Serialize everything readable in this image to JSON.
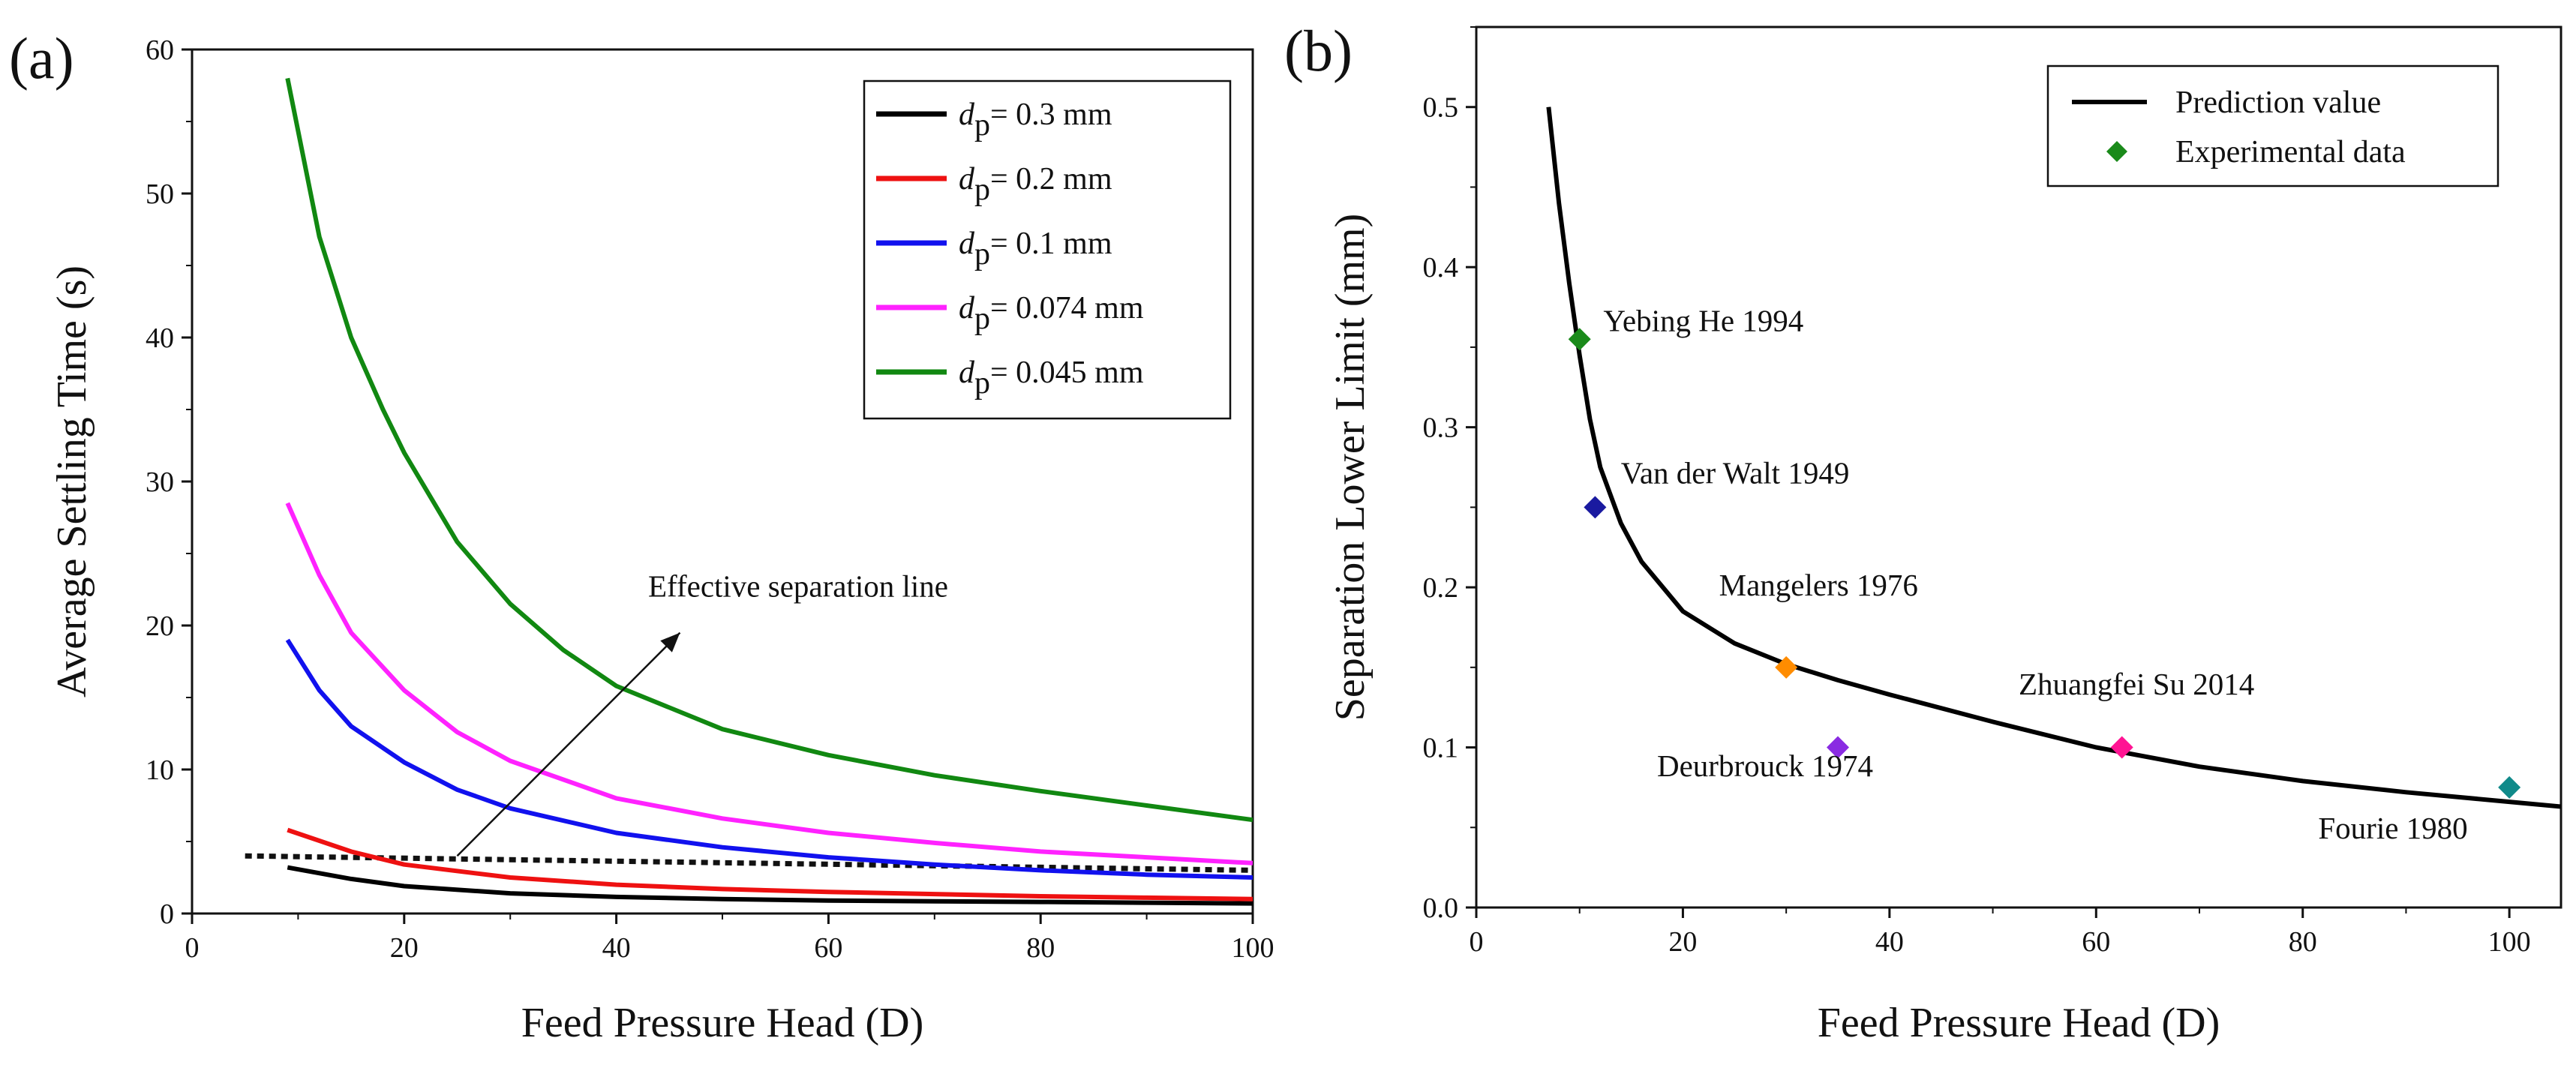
{
  "chart_data": [
    {
      "panel": "(a)",
      "type": "line",
      "xlabel": "Feed Pressure Head (D)",
      "ylabel": "Average Settling Time (s)",
      "xlim": [
        0,
        100
      ],
      "ylim": [
        0,
        60
      ],
      "xticks": [
        "0",
        "20",
        "40",
        "60",
        "80",
        "100"
      ],
      "yticks": [
        "0",
        "10",
        "20",
        "30",
        "40",
        "50",
        "60"
      ],
      "legend_position": "top-right",
      "grid": false,
      "series": [
        {
          "name": "d_p = 0.3 mm",
          "var": "d",
          "sub": "p",
          "rest": "= 0.3 mm",
          "color": "#000000",
          "x": [
            9,
            15,
            20,
            30,
            40,
            50,
            60,
            70,
            80,
            90,
            100
          ],
          "y": [
            3.2,
            2.4,
            1.9,
            1.4,
            1.15,
            1.0,
            0.9,
            0.85,
            0.8,
            0.75,
            0.7
          ]
        },
        {
          "name": "d_p = 0.2 mm",
          "var": "d",
          "sub": "p",
          "rest": "= 0.2 mm",
          "color": "#ee1111",
          "x": [
            9,
            15,
            20,
            30,
            40,
            50,
            60,
            70,
            80,
            90,
            100
          ],
          "y": [
            5.8,
            4.3,
            3.4,
            2.5,
            2.0,
            1.7,
            1.5,
            1.35,
            1.2,
            1.1,
            1.0
          ]
        },
        {
          "name": "d_p = 0.1 mm",
          "var": "d",
          "sub": "p",
          "rest": "= 0.1 mm",
          "color": "#1111ee",
          "x": [
            9,
            12,
            15,
            20,
            25,
            30,
            40,
            50,
            60,
            70,
            80,
            90,
            100
          ],
          "y": [
            19.0,
            15.5,
            13.0,
            10.5,
            8.6,
            7.3,
            5.6,
            4.6,
            3.9,
            3.4,
            3.0,
            2.7,
            2.5
          ]
        },
        {
          "name": "d_p = 0.074 mm",
          "var": "d",
          "sub": "p",
          "rest": "= 0.074 mm",
          "color": "#ff22ff",
          "x": [
            9,
            12,
            15,
            20,
            25,
            30,
            40,
            50,
            60,
            70,
            80,
            90,
            100
          ],
          "y": [
            28.5,
            23.5,
            19.5,
            15.5,
            12.6,
            10.6,
            8.0,
            6.6,
            5.6,
            4.9,
            4.3,
            3.9,
            3.5
          ]
        },
        {
          "name": "d_p = 0.045 mm",
          "var": "d",
          "sub": "p",
          "rest": "= 0.045 mm",
          "color": "#118811",
          "x": [
            9,
            12,
            15,
            18,
            20,
            25,
            30,
            35,
            40,
            50,
            60,
            70,
            80,
            90,
            100
          ],
          "y": [
            58.0,
            47.0,
            40.0,
            35.0,
            32.0,
            25.8,
            21.5,
            18.3,
            15.8,
            12.8,
            11.0,
            9.6,
            8.5,
            7.5,
            6.5
          ]
        }
      ],
      "reference_line": {
        "label": "Effective separation line",
        "x": [
          5,
          100
        ],
        "y": [
          4.0,
          3.0
        ]
      },
      "arrow": {
        "from": [
          25,
          4.0
        ],
        "to": [
          46,
          19.5
        ]
      },
      "arrow_label_anchor": [
        43,
        22
      ]
    },
    {
      "panel": "(b)",
      "type": "line+scatter",
      "xlabel": "Feed Pressure Head (D)",
      "ylabel": "Separation Lower Limit (mm)",
      "xlim": [
        0,
        105
      ],
      "ylim": [
        0,
        0.55
      ],
      "xticks": [
        "0",
        "20",
        "40",
        "60",
        "80",
        "100"
      ],
      "yticks": [
        "0.0",
        "0.1",
        "0.2",
        "0.3",
        "0.4",
        "0.5"
      ],
      "legend_position": "top-right",
      "grid": false,
      "legend": {
        "line": "Prediction value",
        "points": "Experimental data"
      },
      "prediction": {
        "color": "#000000",
        "x": [
          7,
          8,
          9,
          10,
          11,
          12,
          14,
          16,
          20,
          25,
          30,
          35,
          40,
          50,
          60,
          70,
          80,
          90,
          100,
          105
        ],
        "y": [
          0.5,
          0.44,
          0.39,
          0.345,
          0.305,
          0.275,
          0.24,
          0.216,
          0.185,
          0.165,
          0.152,
          0.142,
          0.133,
          0.116,
          0.1,
          0.088,
          0.079,
          0.072,
          0.066,
          0.063
        ]
      },
      "points": [
        {
          "label": "Yebing He 1994",
          "x": 10,
          "y": 0.355,
          "color": "#1a8a1a",
          "label_anchor": [
            12.3,
            0.36
          ],
          "align": "start"
        },
        {
          "label": "Van der Walt 1949",
          "x": 11.5,
          "y": 0.25,
          "color": "#1a1aa0",
          "label_anchor": [
            14,
            0.265
          ],
          "align": "start"
        },
        {
          "label": "Mangelers 1976",
          "x": 30,
          "y": 0.15,
          "color": "#ff8c00",
          "label_anchor": [
            23.5,
            0.195
          ],
          "align": "start"
        },
        {
          "label": "Deurbrouck 1974",
          "x": 35,
          "y": 0.1,
          "color": "#8a2be2",
          "label_anchor": [
            17.5,
            0.082
          ],
          "align": "start"
        },
        {
          "label": "Zhuangfei Su 2014",
          "x": 62.5,
          "y": 0.1,
          "color": "#ff1493",
          "label_anchor": [
            52.5,
            0.133
          ],
          "align": "start"
        },
        {
          "label": "Fourie 1980",
          "x": 100,
          "y": 0.075,
          "color": "#108a8a",
          "label_anchor": [
            81.5,
            0.043
          ],
          "align": "start"
        }
      ]
    }
  ]
}
